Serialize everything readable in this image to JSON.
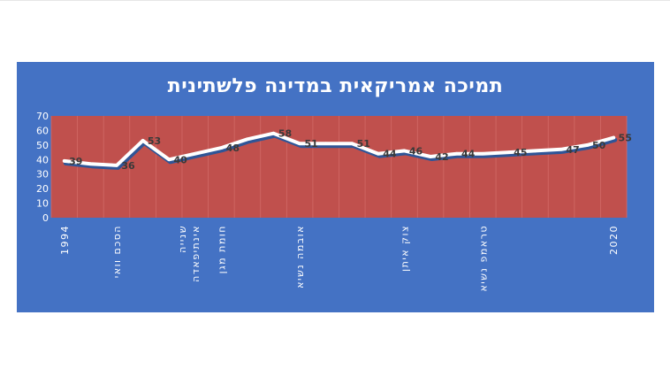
{
  "chart_data": {
    "type": "line",
    "title": "תמיכה אמריקאית במדינה פלשתינית",
    "xlabel": "",
    "ylabel": "",
    "ylim": [
      0,
      70
    ],
    "y_ticks": [
      0,
      10,
      20,
      30,
      40,
      50,
      60,
      70
    ],
    "grid": "vertical",
    "legend": "none",
    "categories": [
      "1994",
      "",
      "הסכם וואי",
      "",
      "",
      "אינתיפאדה שנייה",
      "חומת מגן",
      "",
      "",
      "אובמה נשיא",
      "",
      "",
      "",
      "צוק איתן",
      "",
      "",
      "טראמפ נשיא",
      "",
      "",
      "",
      "",
      "2020"
    ],
    "category_lines": [
      [
        "1994"
      ],
      [
        ""
      ],
      [
        "הסכם וואי"
      ],
      [
        ""
      ],
      [
        ""
      ],
      [
        "אינתיפאדה",
        "שנייה"
      ],
      [
        "חומת מגן"
      ],
      [
        ""
      ],
      [
        ""
      ],
      [
        "אובמה נשיא"
      ],
      [
        ""
      ],
      [
        ""
      ],
      [
        ""
      ],
      [
        "צוק איתן"
      ],
      [
        ""
      ],
      [
        ""
      ],
      [
        "טראמפ נשיא"
      ],
      [
        ""
      ],
      [
        ""
      ],
      [
        ""
      ],
      [
        ""
      ],
      [
        "2020"
      ]
    ],
    "values": [
      39,
      37,
      36,
      53,
      40,
      44,
      48,
      54,
      58,
      51,
      51,
      51,
      44,
      46,
      42,
      44,
      44,
      45,
      46,
      47,
      50,
      55
    ],
    "data_labels": [
      "39",
      "",
      "36",
      "53",
      "40",
      "",
      "48",
      "",
      "58",
      "51",
      "",
      "51",
      "44",
      "46",
      "42",
      "44",
      "",
      "45",
      "",
      "47",
      "50",
      "55"
    ],
    "colors": {
      "panel": "#4472c4",
      "plot_area": "#c0504d",
      "grid": "#d26a67",
      "line": "#ffffff",
      "line_shadow": "#2f5597",
      "axis_text": "#ffffff",
      "data_label_text": "#3a3a3a"
    }
  }
}
